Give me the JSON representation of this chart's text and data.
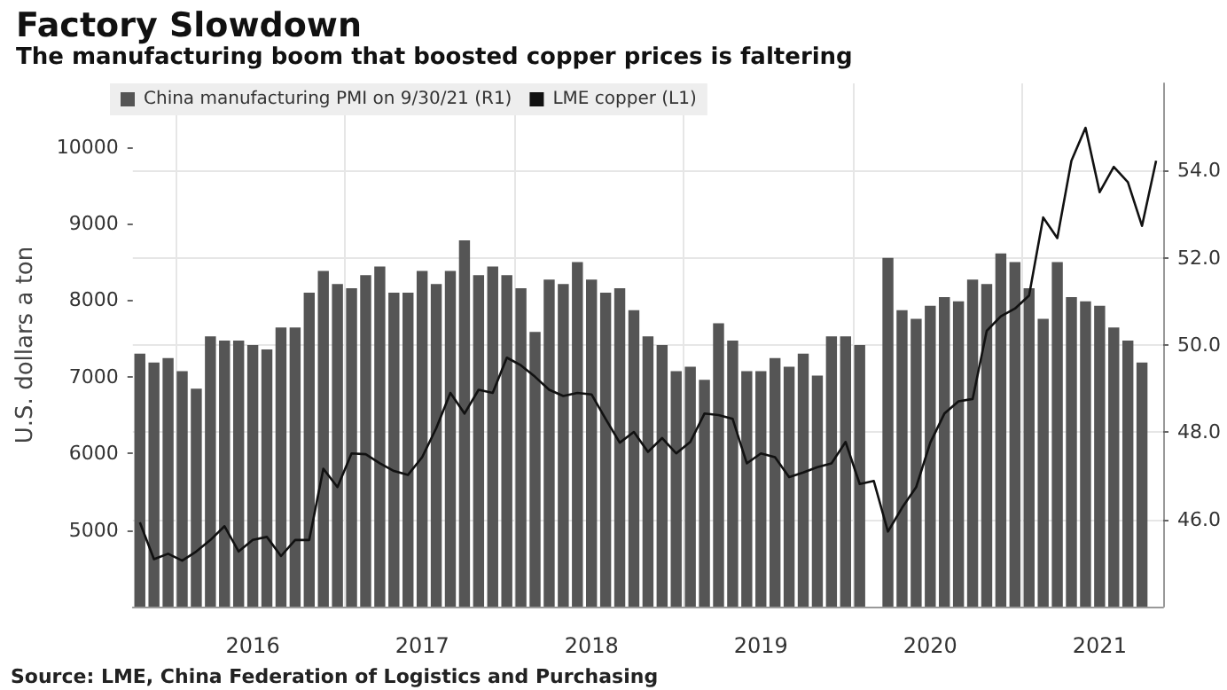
{
  "chart_data": {
    "type": "bar",
    "title": "Factory Slowdown",
    "subtitle": "The manufacturing boom that boosted copper prices is faltering",
    "ylabel": "U.S. dollars a ton",
    "annotations": [
      "Source: LME, China Federation of Logistics and Purchasing"
    ],
    "categories": [
      null,
      null,
      null,
      null,
      null,
      null,
      null,
      null,
      "2016",
      null,
      null,
      null,
      null,
      null,
      null,
      null,
      null,
      null,
      null,
      null,
      "2017",
      null,
      null,
      null,
      null,
      null,
      null,
      null,
      null,
      null,
      null,
      null,
      "2018",
      null,
      null,
      null,
      null,
      null,
      null,
      null,
      null,
      null,
      null,
      null,
      "2019",
      null,
      null,
      null,
      null,
      null,
      null,
      null,
      null,
      null,
      null,
      null,
      "2020",
      null,
      null,
      null,
      null,
      null,
      null,
      null,
      null,
      null,
      null,
      null,
      "2021",
      null,
      null,
      null,
      null
    ],
    "series": [
      {
        "name": "China manufacturing PMI on 9/30/21 (R1)",
        "axis": "y2",
        "color": "#555555",
        "values": [
          49.8,
          49.6,
          49.7,
          49.4,
          49.0,
          50.2,
          50.1,
          50.1,
          50.0,
          49.9,
          50.4,
          50.4,
          51.2,
          51.7,
          51.4,
          51.3,
          51.6,
          51.8,
          51.2,
          51.2,
          51.7,
          51.4,
          51.7,
          52.4,
          51.6,
          51.8,
          51.6,
          51.3,
          50.3,
          51.5,
          51.4,
          51.9,
          51.5,
          51.2,
          51.3,
          50.8,
          50.2,
          50.0,
          49.4,
          49.5,
          49.2,
          50.5,
          50.1,
          49.4,
          49.4,
          49.7,
          49.5,
          49.8,
          49.3,
          50.2,
          50.2,
          50.0,
          null,
          52.0,
          50.8,
          50.6,
          50.9,
          51.1,
          51.0,
          51.5,
          51.4,
          52.1,
          51.9,
          51.3,
          50.6,
          51.9,
          51.1,
          51.0,
          50.9,
          50.4,
          50.1,
          49.6,
          null
        ]
      },
      {
        "name": "LME copper (L1)",
        "type": "line",
        "color": "#111111",
        "values": [
          5100,
          4620,
          4690,
          4600,
          4720,
          4870,
          5050,
          4720,
          4870,
          4910,
          4660,
          4870,
          4870,
          5800,
          5560,
          6000,
          5990,
          5870,
          5770,
          5720,
          5950,
          6330,
          6790,
          6520,
          6830,
          6790,
          7250,
          7150,
          7000,
          6830,
          6750,
          6790,
          6770,
          6450,
          6140,
          6280,
          6020,
          6200,
          6000,
          6150,
          6520,
          6500,
          6450,
          5870,
          6000,
          5950,
          5690,
          5750,
          5820,
          5870,
          6150,
          5600,
          5640,
          4980,
          5290,
          5560,
          6140,
          6520,
          6680,
          6710,
          7600,
          7790,
          7890,
          8060,
          9080,
          8810,
          9820,
          10250,
          9410,
          9740,
          9540,
          8970,
          9820
        ]
      }
    ],
    "ylim": [
      4000,
      10830
    ],
    "yticks": [
      5000,
      6000,
      7000,
      8000,
      9000,
      10000
    ],
    "y2lim": [
      44,
      56
    ],
    "y2ticks": [
      {
        "value": 46,
        "label": "46.0"
      },
      {
        "value": 48,
        "label": "48.0"
      },
      {
        "value": 50,
        "label": "50.0"
      },
      {
        "value": 52,
        "label": "52.0"
      },
      {
        "value": 54,
        "label": "54.0"
      }
    ],
    "grid": true,
    "legend": "top left",
    "marker": "none",
    "line_style": "solid"
  }
}
